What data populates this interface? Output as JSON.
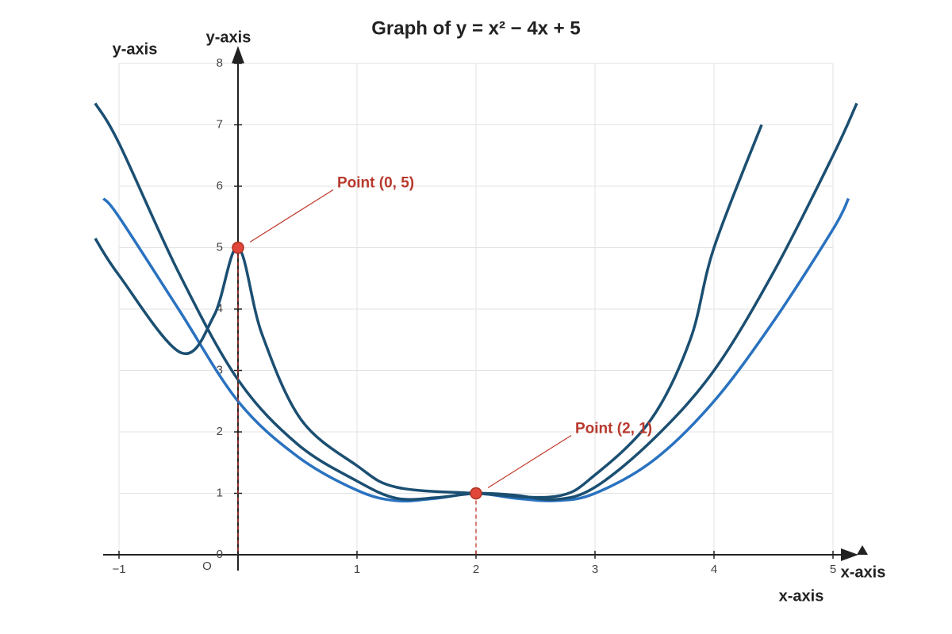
{
  "chart_data": {
    "type": "line",
    "title": "Graph of y = x² − 4x + 5",
    "y_axis_labels": [
      "y-axis",
      "y-axis"
    ],
    "x_axis_labels": [
      "x-axis",
      "x-axis"
    ],
    "origin_label": "O",
    "xlim": [
      -1,
      5
    ],
    "ylim": [
      0,
      8
    ],
    "xticks": [
      {
        "value": -1,
        "label": "−1"
      },
      1,
      2,
      3,
      4,
      5
    ],
    "yticks": [
      0,
      1,
      2,
      3,
      4,
      5,
      6,
      7,
      8
    ],
    "grid": true,
    "series": [
      {
        "color": "#2a72c0",
        "x": [
          -1.13,
          -1,
          -0.5,
          0,
          0.5,
          1,
          1.33,
          1.67,
          2,
          2.33,
          2.67,
          3,
          3.5,
          4,
          4.5,
          5,
          5.13
        ],
        "values": [
          5.8,
          5.5,
          4.0,
          2.5,
          1.6,
          1.05,
          0.88,
          0.92,
          1.0,
          0.92,
          0.88,
          1.0,
          1.55,
          2.5,
          3.8,
          5.3,
          5.8
        ]
      },
      {
        "color": "#1b4f72",
        "x": [
          -1.2,
          -1,
          -0.5,
          0,
          0.5,
          1,
          1.33,
          1.67,
          2,
          2.33,
          2.67,
          3,
          3.5,
          4,
          4.5,
          5,
          5.2
        ],
        "values": [
          7.35,
          6.7,
          4.6,
          2.85,
          1.8,
          1.2,
          0.92,
          0.93,
          1.0,
          0.97,
          0.9,
          1.1,
          1.9,
          3.0,
          4.6,
          6.5,
          7.35
        ]
      },
      {
        "color": "#1b4f72",
        "x": [
          -1.2,
          -1,
          -0.48,
          -0.2,
          0,
          0.2,
          0.53,
          1,
          1.33,
          2,
          2.67,
          3,
          3.47,
          3.8,
          4,
          4.4
        ],
        "values": [
          5.15,
          4.55,
          3.29,
          3.9,
          5.0,
          3.6,
          2.2,
          1.45,
          1.1,
          1.0,
          0.95,
          1.3,
          2.2,
          3.5,
          5.0,
          7.0
        ]
      }
    ],
    "points": {
      "color": "#e0463a",
      "x": [
        0,
        2
      ],
      "values": [
        5,
        1
      ]
    },
    "annotations": [
      "Point (0, 5)",
      "Point (2, 1)"
    ]
  }
}
